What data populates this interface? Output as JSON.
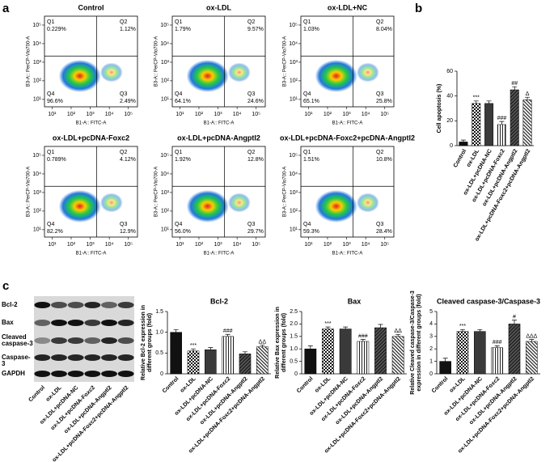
{
  "panel_labels": [
    "a",
    "b",
    "c"
  ],
  "blot": {
    "bands": [
      "Bcl-2",
      "Bax",
      "Cleaved caspase-3",
      "Caspase-3",
      "GAPDH"
    ],
    "lanes": [
      "Control",
      "ox-LDL",
      "ox-LDL+pcDNA-NC",
      "ox-LDL+pcDNA-Foxc2",
      "ox-LDL+pcDNA-Angptl2",
      "ox-LDL+pcDNA-Foxc2+pcDNA-Angptl2"
    ]
  },
  "chart_data": [
    {
      "type": "flow",
      "title": "Control",
      "xlabel": "B1-A:: FITC-A",
      "ylabel": "B3-A:: PerCP-Vio700-A",
      "log": true,
      "xlim": [
        4,
        300000
      ],
      "ylim": [
        4,
        300000
      ],
      "xticks": [
        {
          "value": 10,
          "label": "10¹"
        },
        {
          "value": 100,
          "label": "10²"
        },
        {
          "value": 1000,
          "label": "10³"
        },
        {
          "value": 10000,
          "label": "10⁴"
        },
        {
          "value": 100000,
          "label": "10⁵"
        }
      ],
      "yticks": [
        {
          "value": 10,
          "label": "10¹"
        },
        {
          "value": 100,
          "label": "10²"
        },
        {
          "value": 1000,
          "label": "10³"
        },
        {
          "value": 10000,
          "label": "10⁴"
        },
        {
          "value": 100000,
          "label": "10⁵"
        }
      ],
      "quadrants": [
        "Q1",
        "Q2",
        "Q3",
        "Q4"
      ],
      "values": [
        0.229,
        1.12,
        2.49,
        96.6
      ],
      "value_labels": [
        "0.229%",
        "1.12%",
        "2.49%",
        "96.6%"
      ]
    },
    {
      "type": "flow",
      "title": "ox-LDL",
      "xlabel": "B1-A:: FITC-A",
      "ylabel": "B3-A:: PerCP-Vio700-A",
      "log": true,
      "xlim": [
        4,
        300000
      ],
      "ylim": [
        4,
        300000
      ],
      "xticks": [
        {
          "value": 10,
          "label": "10¹"
        },
        {
          "value": 100,
          "label": "10²"
        },
        {
          "value": 1000,
          "label": "10³"
        },
        {
          "value": 10000,
          "label": "10⁴"
        },
        {
          "value": 100000,
          "label": "10⁵"
        }
      ],
      "yticks": [
        {
          "value": 10,
          "label": "10¹"
        },
        {
          "value": 100,
          "label": "10²"
        },
        {
          "value": 1000,
          "label": "10³"
        },
        {
          "value": 10000,
          "label": "10⁴"
        },
        {
          "value": 100000,
          "label": "10⁵"
        }
      ],
      "quadrants": [
        "Q1",
        "Q2",
        "Q3",
        "Q4"
      ],
      "values": [
        1.79,
        9.57,
        24.6,
        64.1
      ],
      "value_labels": [
        "1.79%",
        "9.57%",
        "24.6%",
        "64.1%"
      ]
    },
    {
      "type": "flow",
      "title": "ox-LDL+NC",
      "xlabel": "B1-A:: FITC-A",
      "ylabel": "B3-A:: PerCP-Vio700-A",
      "log": true,
      "xlim": [
        4,
        300000
      ],
      "ylim": [
        4,
        300000
      ],
      "xticks": [
        {
          "value": 10,
          "label": "10¹"
        },
        {
          "value": 100,
          "label": "10²"
        },
        {
          "value": 1000,
          "label": "10³"
        },
        {
          "value": 10000,
          "label": "10⁴"
        },
        {
          "value": 100000,
          "label": "10⁵"
        }
      ],
      "yticks": [
        {
          "value": 10,
          "label": "10¹"
        },
        {
          "value": 100,
          "label": "10²"
        },
        {
          "value": 1000,
          "label": "10³"
        },
        {
          "value": 10000,
          "label": "10⁴"
        },
        {
          "value": 100000,
          "label": "10⁵"
        }
      ],
      "quadrants": [
        "Q1",
        "Q2",
        "Q3",
        "Q4"
      ],
      "values": [
        1.03,
        8.04,
        25.8,
        65.1
      ],
      "value_labels": [
        "1.03%",
        "8.04%",
        "25.8%",
        "65.1%"
      ]
    },
    {
      "type": "flow",
      "title": "ox-LDL+pcDNA-Foxc2",
      "xlabel": "B1-A:: FITC-A",
      "ylabel": "B3-A:: PerCP-Vio700-A",
      "log": true,
      "xlim": [
        4,
        300000
      ],
      "ylim": [
        4,
        300000
      ],
      "xticks": [
        {
          "value": 10,
          "label": "10¹"
        },
        {
          "value": 100,
          "label": "10²"
        },
        {
          "value": 1000,
          "label": "10³"
        },
        {
          "value": 10000,
          "label": "10⁴"
        },
        {
          "value": 100000,
          "label": "10⁵"
        }
      ],
      "yticks": [
        {
          "value": 10,
          "label": "10¹"
        },
        {
          "value": 100,
          "label": "10²"
        },
        {
          "value": 1000,
          "label": "10³"
        },
        {
          "value": 10000,
          "label": "10⁴"
        },
        {
          "value": 100000,
          "label": "10⁵"
        }
      ],
      "quadrants": [
        "Q1",
        "Q2",
        "Q3",
        "Q4"
      ],
      "values": [
        0.789,
        4.12,
        12.9,
        82.2
      ],
      "value_labels": [
        "0.789%",
        "4.12%",
        "12.9%",
        "82.2%"
      ]
    },
    {
      "type": "flow",
      "title": "ox-LDL+pcDNA-Angptl2",
      "xlabel": "B1-A:: FITC-A",
      "ylabel": "B3-A:: PerCP-Vio700-A",
      "log": true,
      "xlim": [
        4,
        300000
      ],
      "ylim": [
        4,
        300000
      ],
      "xticks": [
        {
          "value": 10,
          "label": "10¹"
        },
        {
          "value": 100,
          "label": "10²"
        },
        {
          "value": 1000,
          "label": "10³"
        },
        {
          "value": 10000,
          "label": "10⁴"
        },
        {
          "value": 100000,
          "label": "10⁵"
        }
      ],
      "yticks": [
        {
          "value": 10,
          "label": "10¹"
        },
        {
          "value": 100,
          "label": "10²"
        },
        {
          "value": 1000,
          "label": "10³"
        },
        {
          "value": 10000,
          "label": "10⁴"
        },
        {
          "value": 100000,
          "label": "10⁵"
        }
      ],
      "quadrants": [
        "Q1",
        "Q2",
        "Q3",
        "Q4"
      ],
      "values": [
        1.92,
        12.8,
        29.7,
        56.0
      ],
      "value_labels": [
        "1.92%",
        "12.8%",
        "29.7%",
        "56.0%"
      ]
    },
    {
      "type": "flow",
      "title": "ox-LDL+pcDNA-Foxc2+pcDNA-Angptl2",
      "xlabel": "B1-A:: FITC-A",
      "ylabel": "B3-A:: PerCP-Vio700-A",
      "log": true,
      "xlim": [
        4,
        300000
      ],
      "ylim": [
        4,
        300000
      ],
      "xticks": [
        {
          "value": 10,
          "label": "10¹"
        },
        {
          "value": 100,
          "label": "10²"
        },
        {
          "value": 1000,
          "label": "10³"
        },
        {
          "value": 10000,
          "label": "10⁴"
        },
        {
          "value": 100000,
          "label": "10⁵"
        }
      ],
      "yticks": [
        {
          "value": 10,
          "label": "10¹"
        },
        {
          "value": 100,
          "label": "10²"
        },
        {
          "value": 1000,
          "label": "10³"
        },
        {
          "value": 10000,
          "label": "10⁴"
        },
        {
          "value": 100000,
          "label": "10⁵"
        }
      ],
      "quadrants": [
        "Q1",
        "Q2",
        "Q3",
        "Q4"
      ],
      "values": [
        1.51,
        10.8,
        28.4,
        59.3
      ],
      "value_labels": [
        "1.51%",
        "10.8%",
        "28.4%",
        "59.3%"
      ]
    },
    {
      "type": "bar",
      "ylabel": [
        "Cell apoptosis (%)"
      ],
      "categories": [
        "Control",
        "ox-LDL",
        "ox-LDL+pcDNA-NC",
        "ox-LDL+pcDNA-Foxc2",
        "ox-LDL+pcDNA-Angptl2",
        "ox-LDL+pcDNA-Foxc2+pcDNA-Angptl2"
      ],
      "values": [
        3,
        34,
        34,
        17,
        45,
        37
      ],
      "errors": [
        1.5,
        2,
        2,
        2.5,
        2.5,
        2
      ],
      "annotations": [
        null,
        "***",
        null,
        "###",
        "##",
        "Δ"
      ],
      "ylim": [
        0,
        60
      ],
      "yticks": [
        0,
        20,
        40,
        60
      ]
    },
    {
      "type": "bar",
      "title": "Bcl-2",
      "ylabel": [
        "Relative Bcl-2 expression in",
        "different groups (fold)"
      ],
      "categories": [
        "Control",
        "ox-LDL",
        "ox-LDL+pcDNA-NC",
        "ox-LDL+pcDNA-Foxc2",
        "ox-LDL+pcDNA-Angptl2",
        "ox-LDL+pcDNA-Foxc2+pcDNA-Angptl2"
      ],
      "values": [
        1.0,
        0.55,
        0.58,
        0.9,
        0.48,
        0.65
      ],
      "errors": [
        0.06,
        0.05,
        0.05,
        0.05,
        0.05,
        0.04
      ],
      "annotations": [
        null,
        "***",
        null,
        "###",
        null,
        "ΔΔ"
      ],
      "ylim": [
        0,
        1.5
      ],
      "yticks": [
        0,
        0.5,
        {
          "value": 1,
          "label": "1.0"
        },
        1.5
      ]
    },
    {
      "type": "bar",
      "title": "Bax",
      "ylabel": [
        "Relative Bax expression in",
        "different groups (fold)"
      ],
      "categories": [
        "Control",
        "ox-LDL",
        "ox-LDL+pcDNA-NC",
        "ox-LDL+pcDNA-Foxc2",
        "ox-LDL+pcDNA-Angptl2",
        "ox-LDL+pcDNA-Foxc2+pcDNA-Angptl2"
      ],
      "values": [
        1.0,
        1.8,
        1.8,
        1.3,
        1.85,
        1.5
      ],
      "errors": [
        0.12,
        0.08,
        0.08,
        0.08,
        0.13,
        0.08
      ],
      "annotations": [
        null,
        "***",
        null,
        "###",
        null,
        "ΔΔ"
      ],
      "ylim": [
        0,
        2.5
      ],
      "yticks": [
        0,
        0.5,
        {
          "value": 1,
          "label": "1.0"
        },
        1.5,
        {
          "value": 2,
          "label": "2.0"
        },
        2.5
      ]
    },
    {
      "type": "bar",
      "title": "Cleaved caspase-3/Caspase-3",
      "ylabel": [
        "Relative Cleaved caspase-3/Caspase-3",
        "expression in different groups (fold)"
      ],
      "categories": [
        "Control",
        "ox-LDL",
        "ox-LDL+pcDNA-NC",
        "ox-LDL+pcDNA-Foxc2",
        "ox-LDL+pcDNA-Angptl2",
        "ox-LDL+pcDNA-Foxc2+pcDNA-Angptl2"
      ],
      "values": [
        1.0,
        3.4,
        3.4,
        2.1,
        4.0,
        2.6
      ],
      "errors": [
        0.25,
        0.15,
        0.15,
        0.15,
        0.3,
        0.15
      ],
      "annotations": [
        null,
        "***",
        null,
        "###",
        "#",
        "ΔΔΔ"
      ],
      "ylim": [
        0,
        5
      ],
      "yticks": [
        0,
        1,
        2,
        3,
        4,
        5
      ]
    }
  ]
}
